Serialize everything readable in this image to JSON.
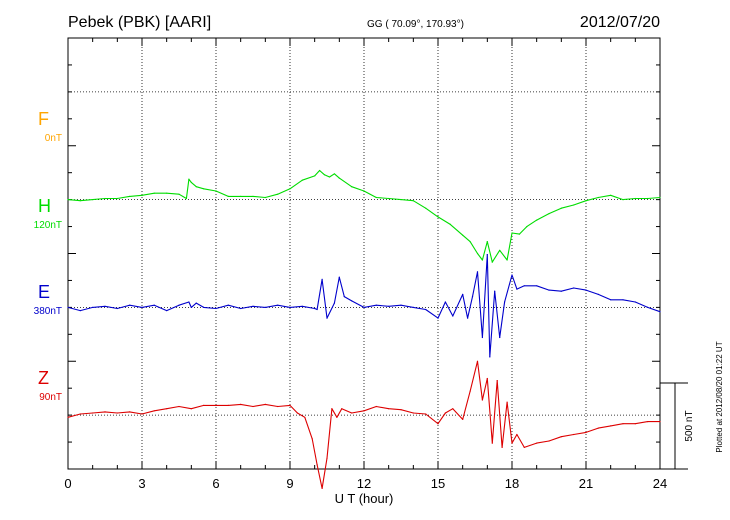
{
  "header": {
    "station": "Pebek (PBK)  [AARI]",
    "coords": "GG ( 70.09°, 170.93°)",
    "date": "2012/07/20"
  },
  "plotted_note": "Plotted at 2012/08/20 01:22 UT",
  "scale_label": "500 nT",
  "chart_data": {
    "type": "line",
    "title": "Pebek (PBK)  [AARI]",
    "xlabel": "U T (hour)",
    "ylabel": "",
    "xlim": [
      0,
      24
    ],
    "ylim": [
      -1000,
      1000
    ],
    "x_ticks": [
      "0",
      "3",
      "6",
      "9",
      "12",
      "15",
      "18",
      "21",
      "24"
    ],
    "grid": true,
    "scale_bar_nT": 500,
    "colors": {
      "F": "#ffa500",
      "H": "#00dd00",
      "E": "#0000cc",
      "Z": "#dd0000"
    },
    "series": [
      {
        "name": "F",
        "offset_label": "0nT",
        "baseline": 750,
        "x": [],
        "values": []
      },
      {
        "name": "H",
        "offset_label": "120nT",
        "baseline": 250,
        "x": [
          0,
          0.5,
          1,
          1.5,
          2,
          2.5,
          3,
          3.5,
          4,
          4.5,
          4.8,
          4.9,
          5,
          5.2,
          5.5,
          6,
          6.5,
          7,
          7.5,
          8,
          8.5,
          9,
          9.5,
          10,
          10.2,
          10.4,
          10.6,
          10.8,
          11,
          11.5,
          12,
          12.5,
          13,
          13.5,
          14,
          14.5,
          15,
          15.5,
          16,
          16.3,
          16.6,
          16.8,
          17,
          17.2,
          17.5,
          17.8,
          18,
          18.3,
          18.6,
          19,
          19.5,
          20,
          20.5,
          21,
          21.5,
          22,
          22.5,
          23,
          23.5,
          24
        ],
        "values": [
          250,
          245,
          250,
          255,
          255,
          265,
          270,
          280,
          280,
          275,
          255,
          345,
          330,
          310,
          300,
          290,
          265,
          265,
          265,
          260,
          275,
          300,
          340,
          360,
          385,
          365,
          355,
          370,
          350,
          310,
          290,
          260,
          255,
          250,
          245,
          210,
          170,
          135,
          85,
          55,
          0,
          -30,
          55,
          -40,
          15,
          -30,
          95,
          90,
          125,
          155,
          185,
          210,
          225,
          245,
          260,
          270,
          250,
          255,
          255,
          260
        ]
      },
      {
        "name": "E",
        "offset_label": "380nT",
        "baseline": -250,
        "x": [
          0,
          0.5,
          1,
          1.5,
          2,
          2.5,
          3,
          3.5,
          4,
          4.5,
          4.9,
          5,
          5.2,
          5.5,
          6,
          6.5,
          7,
          7.5,
          8,
          8.5,
          9,
          9.5,
          10,
          10.1,
          10.3,
          10.5,
          10.8,
          11,
          11.2,
          11.5,
          12,
          12.5,
          13,
          13.5,
          14,
          14.5,
          15,
          15.3,
          15.6,
          16,
          16.2,
          16.4,
          16.6,
          16.8,
          17,
          17.1,
          17.3,
          17.5,
          17.7,
          18,
          18.2,
          18.5,
          19,
          19.5,
          20,
          20.5,
          21,
          21.5,
          22,
          22.5,
          23,
          23.5,
          24
        ],
        "values": [
          -250,
          -265,
          -250,
          -245,
          -255,
          -240,
          -250,
          -240,
          -265,
          -240,
          -225,
          -250,
          -230,
          -250,
          -255,
          -240,
          -255,
          -245,
          -250,
          -240,
          -250,
          -245,
          -255,
          -260,
          -120,
          -300,
          -230,
          -110,
          -200,
          -220,
          -250,
          -240,
          -245,
          -240,
          -250,
          -260,
          -300,
          -225,
          -290,
          -190,
          -300,
          -200,
          -85,
          -390,
          -5,
          -480,
          -175,
          -390,
          -225,
          -100,
          -165,
          -150,
          -150,
          -170,
          -175,
          -160,
          -170,
          -190,
          -215,
          -215,
          -225,
          -250,
          -270
        ]
      },
      {
        "name": "Z",
        "offset_label": "90nT",
        "baseline": -750,
        "x": [
          0,
          0.5,
          1,
          1.5,
          2,
          2.5,
          3,
          3.5,
          4,
          4.5,
          5,
          5.5,
          6,
          6.5,
          7,
          7.5,
          8,
          8.5,
          9,
          9.3,
          9.6,
          9.9,
          10.1,
          10.3,
          10.5,
          10.7,
          10.9,
          11.1,
          11.5,
          12,
          12.5,
          13,
          13.5,
          14,
          14.5,
          15,
          15.3,
          15.6,
          16,
          16.3,
          16.6,
          16.8,
          17,
          17.2,
          17.4,
          17.6,
          17.8,
          18,
          18.2,
          18.5,
          19,
          19.5,
          20,
          20.5,
          21,
          21.5,
          22,
          22.5,
          23,
          23.5,
          24
        ],
        "values": [
          -760,
          -745,
          -740,
          -735,
          -740,
          -735,
          -745,
          -730,
          -720,
          -710,
          -720,
          -705,
          -705,
          -705,
          -700,
          -710,
          -700,
          -710,
          -705,
          -740,
          -760,
          -860,
          -980,
          -1090,
          -950,
          -720,
          -760,
          -720,
          -740,
          -730,
          -710,
          -720,
          -725,
          -740,
          -745,
          -790,
          -740,
          -720,
          -770,
          -640,
          -500,
          -680,
          -580,
          -880,
          -590,
          -900,
          -690,
          -880,
          -840,
          -900,
          -880,
          -870,
          -850,
          -840,
          -830,
          -810,
          -800,
          -790,
          -790,
          -780,
          -780
        ]
      }
    ]
  }
}
